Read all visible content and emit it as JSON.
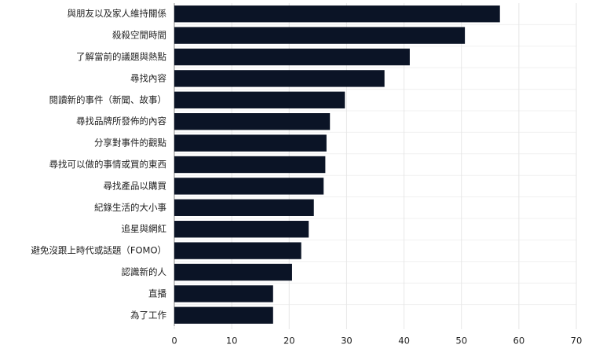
{
  "chart_data": {
    "type": "bar",
    "orientation": "horizontal",
    "categories": [
      "與朋友以及家人維持關係",
      "殺殺空閒時間",
      "了解當前的議題與熱點",
      "尋找內容",
      "閱讀新的事件（新聞、故事）",
      "尋找品牌所發佈的內容",
      "分享對事件的觀點",
      "尋找可以做的事情或買的東西",
      "尋找產品以購買",
      "紀錄生活的大小事",
      "追星與網紅",
      "避免沒跟上時代或話題（FOMO）",
      "認識新的人",
      "直播",
      "為了工作"
    ],
    "values": [
      56.7,
      50.6,
      41.0,
      36.6,
      29.7,
      27.1,
      26.5,
      26.3,
      26.0,
      24.3,
      23.4,
      22.1,
      20.5,
      17.2,
      17.2
    ],
    "color": "#0b1426",
    "xlim": [
      0,
      70
    ],
    "xticks": [
      0,
      10,
      20,
      30,
      40,
      50,
      60,
      70
    ],
    "grid": true
  }
}
